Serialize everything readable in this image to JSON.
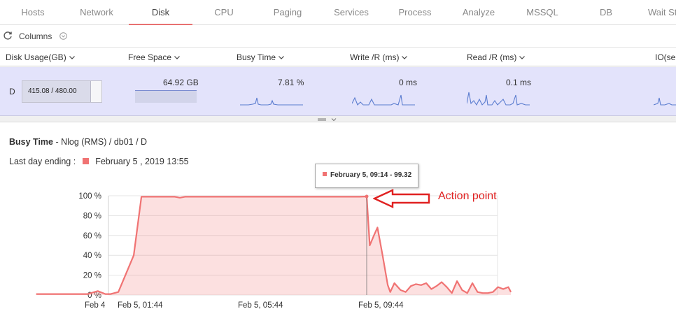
{
  "tabs": [
    {
      "label": "Hosts",
      "active": false
    },
    {
      "label": "Network",
      "active": false
    },
    {
      "label": "Disk",
      "active": true
    },
    {
      "label": "CPU",
      "active": false
    },
    {
      "label": "Paging",
      "active": false
    },
    {
      "label": "Services",
      "active": false
    },
    {
      "label": "Process",
      "active": false
    },
    {
      "label": "Analyze",
      "active": false
    },
    {
      "label": "MSSQL",
      "active": false
    },
    {
      "label": "DB",
      "active": false
    },
    {
      "label": "Wait St",
      "active": false
    }
  ],
  "toolbar": {
    "columns_label": "Columns",
    "refresh_icon": "refresh-icon",
    "columns_icon": "chevron-down-circle-icon"
  },
  "columns": [
    "Disk Usage(GB)",
    "Free Space",
    "Busy Time",
    "Write /R (ms)",
    "Read /R (ms)",
    "IO(se"
  ],
  "row": {
    "drive": "D",
    "usage_text": "415.08 / 480.00",
    "usage_fraction": 0.865,
    "free_space": "64.92 GB",
    "busy_time": "7.81 %",
    "write_r": "0 ms",
    "read_r": "0.1 ms"
  },
  "detail": {
    "metric": "Busy Time",
    "path": "- Nlog (RMS) / db01 / D",
    "ending_label": "Last day ending :",
    "ending_value": "February 5 , 2019 13:55",
    "series_color": "#f07373"
  },
  "tooltip": {
    "text": "February 5, 09:14 - 99.32"
  },
  "annotation": {
    "text": "Action point",
    "color": "#e02121"
  },
  "chart_data": {
    "type": "area",
    "y_ticks": [
      "100 %",
      "80 %",
      "60 %",
      "40 %",
      "20 %",
      "0 %"
    ],
    "x_ticks": [
      "Feb 4",
      "Feb 5, 01:44",
      "Feb 5, 05:44",
      "Feb 5, 09:44"
    ],
    "ylim": [
      0,
      100
    ],
    "grid": true,
    "series": [
      {
        "color": "#f07373",
        "x": [
          "Feb 4, 22:30",
          "Feb 4, 23:30",
          "Feb 5, 00:10",
          "Feb 5, 00:30",
          "Feb 5, 00:45",
          "Feb 5, 00:55",
          "Feb 5, 01:10",
          "Feb 5, 01:40",
          "Feb 5, 01:55",
          "Feb 5, 02:10",
          "Feb 5, 03:00",
          "Feb 5, 03:10",
          "Feb 5, 03:20",
          "Feb 5, 04:00",
          "Feb 5, 05:00",
          "Feb 5, 06:00",
          "Feb 5, 07:00",
          "Feb 5, 08:00",
          "Feb 5, 09:00",
          "Feb 5, 09:14",
          "Feb 5, 09:20",
          "Feb 5, 09:28",
          "Feb 5, 09:35",
          "Feb 5, 09:45",
          "Feb 5, 09:55",
          "Feb 5, 10:00",
          "Feb 5, 10:08",
          "Feb 5, 10:20",
          "Feb 5, 10:30",
          "Feb 5, 10:40",
          "Feb 5, 10:50",
          "Feb 5, 11:00",
          "Feb 5, 11:10",
          "Feb 5, 11:20",
          "Feb 5, 11:30",
          "Feb 5, 11:40",
          "Feb 5, 11:50",
          "Feb 5, 12:00",
          "Feb 5, 12:10",
          "Feb 5, 12:20",
          "Feb 5, 12:30",
          "Feb 5, 12:40",
          "Feb 5, 12:50",
          "Feb 5, 13:00",
          "Feb 5, 13:10",
          "Feb 5, 13:20",
          "Feb 5, 13:30",
          "Feb 5, 13:40",
          "Feb 5, 13:50",
          "Feb 5, 13:55"
        ],
        "y": [
          1,
          1,
          1,
          4,
          1,
          1,
          3,
          40,
          99,
          99,
          99,
          98,
          99,
          99,
          99,
          99,
          99,
          99,
          99,
          99.32,
          50,
          60,
          68,
          40,
          10,
          3,
          12,
          5,
          3,
          9,
          11,
          10,
          12,
          6,
          9,
          13,
          8,
          2,
          14,
          5,
          2,
          12,
          3,
          2,
          2,
          3,
          8,
          6,
          8,
          3
        ]
      }
    ]
  }
}
